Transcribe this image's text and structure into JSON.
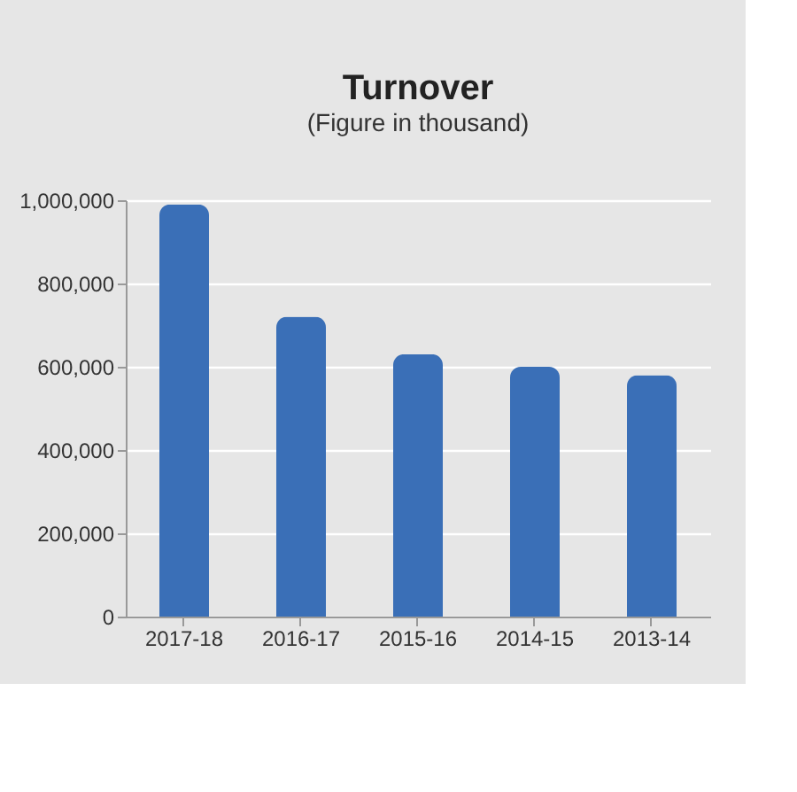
{
  "chart_data": {
    "type": "bar",
    "title": "Turnover",
    "subtitle": "(Figure in thousand)",
    "categories": [
      "2017-18",
      "2016-17",
      "2015-16",
      "2014-15",
      "2013-14"
    ],
    "values": [
      990000,
      720000,
      630000,
      600000,
      580000
    ],
    "color": "#3a6fb7",
    "ylim": [
      0,
      1000000
    ],
    "yticks": [
      {
        "value": 0,
        "label": "0"
      },
      {
        "value": 200000,
        "label": "200,000"
      },
      {
        "value": 400000,
        "label": "400,000"
      },
      {
        "value": 600000,
        "label": "600,000"
      },
      {
        "value": 800000,
        "label": "800,000"
      },
      {
        "value": 1000000,
        "label": "1,000,000"
      }
    ],
    "grid": "y"
  }
}
